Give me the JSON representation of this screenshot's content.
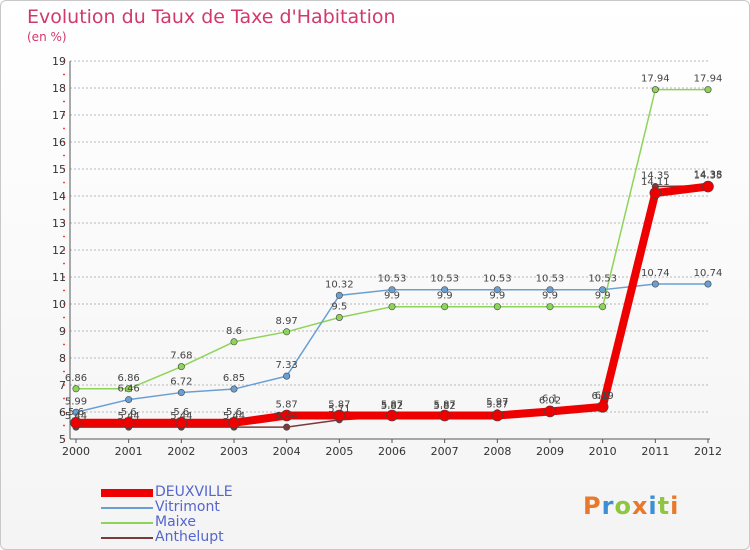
{
  "header": {
    "title": "Evolution du Taux de Taxe d'Habitation",
    "subtitle": "(en %)"
  },
  "logo": {
    "text": "Proxiti"
  },
  "colors": {
    "title": "#d2386c",
    "grid": "#b8b8b8",
    "legend_text": "#5566cc"
  },
  "chart_data": {
    "type": "line",
    "title": "Evolution du Taux de Taxe d'Habitation",
    "subtitle": "(en %)",
    "x": [
      "2000",
      "2001",
      "2002",
      "2003",
      "2004",
      "2005",
      "2006",
      "2007",
      "2008",
      "2009",
      "2010",
      "2011",
      "2012"
    ],
    "ylim": [
      5,
      19
    ],
    "yticks": [
      5,
      6,
      7,
      8,
      9,
      10,
      11,
      12,
      13,
      14,
      15,
      16,
      17,
      18,
      19
    ],
    "grid": true,
    "legend_position": "bottom-left",
    "series": [
      {
        "name": "DEUXVILLE",
        "color": "#ee0000",
        "width": 8,
        "values": [
          5.6,
          5.6,
          5.6,
          5.6,
          5.87,
          5.87,
          5.87,
          5.87,
          5.87,
          6.02,
          6.19,
          14.11,
          14.35
        ]
      },
      {
        "name": "Vitrimont",
        "color": "#6a9fd4",
        "width": 1.5,
        "values": [
          5.99,
          6.46,
          6.72,
          6.85,
          7.33,
          10.32,
          10.53,
          10.53,
          10.53,
          10.53,
          10.53,
          10.74,
          10.74
        ]
      },
      {
        "name": "Maixe",
        "color": "#8ed45a",
        "width": 1.5,
        "values": [
          6.86,
          6.86,
          7.68,
          8.6,
          8.97,
          9.5,
          9.9,
          9.9,
          9.9,
          9.9,
          9.9,
          17.94,
          17.94
        ]
      },
      {
        "name": "Anthelupt",
        "color": "#7a3a3a",
        "width": 1.5,
        "values": [
          5.44,
          5.44,
          5.44,
          5.44,
          5.44,
          5.71,
          5.82,
          5.82,
          5.97,
          6.1,
          6.2,
          14.35,
          14.38
        ]
      }
    ],
    "data_labels": {
      "DEUXVILLE": [
        "5.6",
        "5.6",
        "5.6",
        "5.6",
        "5.87",
        "5.87",
        "5.87",
        "5.87",
        "5.87",
        "6.02",
        "6.19",
        "14.11",
        "14.35"
      ],
      "Vitrimont": [
        "5.99",
        "6.46",
        "6.72",
        "6.85",
        "7.33",
        "10.32",
        "10.53",
        "10.53",
        "10.53",
        "10.53",
        "10.53",
        "10.74",
        "10.74"
      ],
      "Maixe": [
        "6.86",
        "6.86",
        "7.68",
        "8.6",
        "8.97",
        "9.5",
        "9.9",
        "9.9",
        "9.9",
        "9.9",
        "9.9",
        "17.94",
        "17.94"
      ],
      "Anthelupt": [
        "5.44",
        "5.44",
        "5.44",
        "5.44",
        "5.44",
        "5.71",
        "5.82",
        "5.82",
        "5.97",
        "6.1",
        "6.2",
        "14.35",
        "14.38"
      ]
    }
  }
}
